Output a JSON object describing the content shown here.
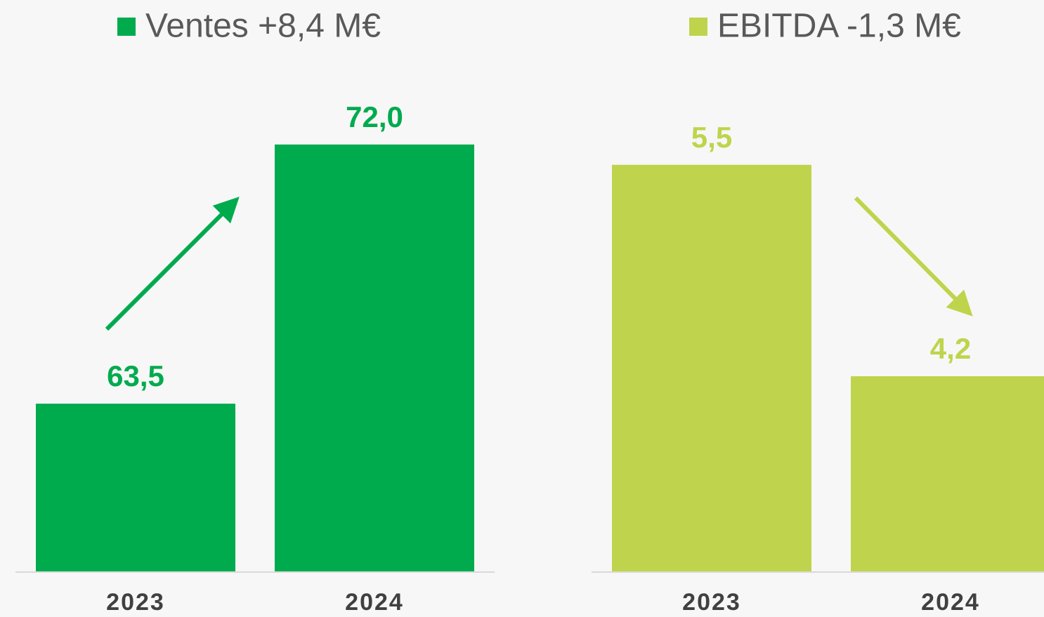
{
  "chart_data": [
    {
      "type": "bar",
      "categories": [
        "2023",
        "2024"
      ],
      "series": [
        {
          "name": "Ventes +8,4 M€",
          "color": "#00ab4e",
          "values": [
            63.5,
            72.0
          ],
          "value_labels": [
            "63,5",
            "72,0"
          ]
        }
      ],
      "ylim": [
        58,
        74
      ]
    },
    {
      "type": "bar",
      "categories": [
        "2023",
        "2024"
      ],
      "series": [
        {
          "name": "EBITDA -1,3 M€",
          "color": "#bfd44c",
          "values": [
            5.5,
            4.2
          ],
          "value_labels": [
            "5,5",
            "4,2"
          ]
        }
      ],
      "ylim": [
        3,
        6
      ]
    }
  ]
}
